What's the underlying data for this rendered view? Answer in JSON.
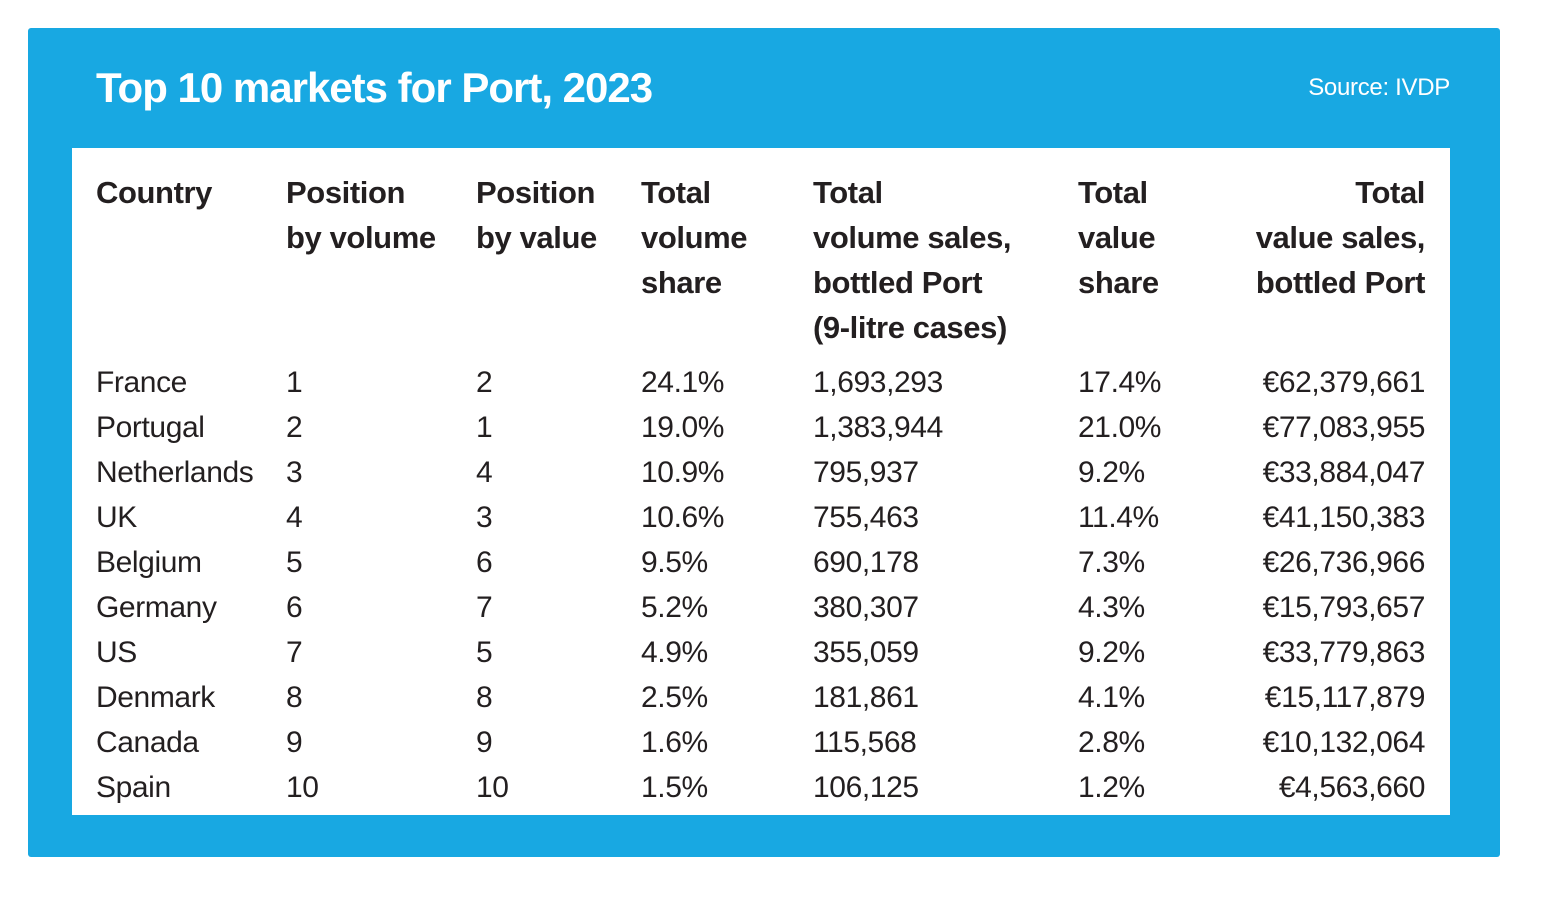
{
  "header": {
    "title": "Top 10 markets for Port, 2023",
    "source": "Source: IVDP"
  },
  "colors": {
    "card_blue": "#18a8e2",
    "panel_white": "#ffffff",
    "text_dark": "#231f20",
    "title_white": "#ffffff"
  },
  "chart_data": {
    "type": "table",
    "title": "Top 10 markets for Port, 2023",
    "source": "Source: IVDP",
    "columns": [
      "Country",
      "Position by volume",
      "Position by value",
      "Total volume share",
      "Total volume sales, bottled Port (9-litre cases)",
      "Total value share",
      "Total value sales, bottled Port"
    ],
    "columns_display": [
      "Country",
      "Position\nby volume",
      "Position\nby value",
      "Total\nvolume\nshare",
      "Total\nvolume sales,\nbottled Port\n(9-litre cases)",
      "Total\nvalue\nshare",
      "Total\nvalue sales,\nbottled Port"
    ],
    "rows": [
      [
        "France",
        "1",
        "2",
        "24.1%",
        "1,693,293",
        "17.4%",
        "€62,379,661"
      ],
      [
        "Portugal",
        "2",
        "1",
        "19.0%",
        "1,383,944",
        "21.0%",
        "€77,083,955"
      ],
      [
        "Netherlands",
        "3",
        "4",
        "10.9%",
        "795,937",
        "9.2%",
        "€33,884,047"
      ],
      [
        "UK",
        "4",
        "3",
        "10.6%",
        "755,463",
        "11.4%",
        "€41,150,383"
      ],
      [
        "Belgium",
        "5",
        "6",
        "9.5%",
        "690,178",
        "7.3%",
        "€26,736,966"
      ],
      [
        "Germany",
        "6",
        "7",
        "5.2%",
        "380,307",
        "4.3%",
        "€15,793,657"
      ],
      [
        "US",
        "7",
        "5",
        "4.9%",
        "355,059",
        "9.2%",
        "€33,779,863"
      ],
      [
        "Denmark",
        "8",
        "8",
        "2.5%",
        "181,861",
        "4.1%",
        "€15,117,879"
      ],
      [
        "Canada",
        "9",
        "9",
        "1.6%",
        "115,568",
        "2.8%",
        "€10,132,064"
      ],
      [
        "Spain",
        "10",
        "10",
        "1.5%",
        "106,125",
        "1.2%",
        "€4,563,660"
      ]
    ]
  }
}
